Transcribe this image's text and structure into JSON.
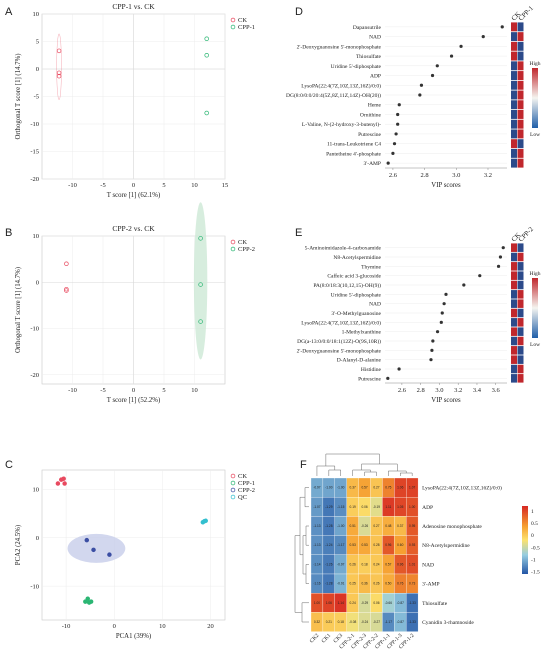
{
  "panel_labels": {
    "A": "A",
    "B": "B",
    "C": "C",
    "D": "D",
    "E": "E",
    "F": "F"
  },
  "chart_data": [
    {
      "id": "A",
      "type": "scatter",
      "title": "CPP-1 vs. CK",
      "xlabel": "T score [1] (62.1%)",
      "ylabel": "Orthogonal T score [1] (14.7%)",
      "xlim": [
        -15,
        15
      ],
      "ylim": [
        -20,
        10
      ],
      "xticks": [
        -10,
        -5,
        0,
        5,
        10,
        15
      ],
      "yticks": [
        -20,
        -15,
        -10,
        -5,
        0,
        5,
        10
      ],
      "legend_position": "right",
      "series": [
        {
          "name": "CK",
          "color": "#e8495f",
          "points": [
            [
              -12.2,
              3.3
            ],
            [
              -12.2,
              -0.7
            ],
            [
              -12.2,
              -1.3
            ]
          ]
        },
        {
          "name": "CPP-1",
          "color": "#2bb673",
          "points": [
            [
              12.0,
              5.5
            ],
            [
              12.0,
              2.5
            ],
            [
              12.0,
              -8.0
            ]
          ]
        }
      ],
      "ellipse": {
        "series": "CK",
        "cx": -12.2,
        "cy": 0.4,
        "rx": 0.4,
        "ry": 6
      }
    },
    {
      "id": "B",
      "type": "scatter",
      "title": "CPP-2 vs. CK",
      "xlabel": "T score [1] (52.2%)",
      "ylabel": "Orthogonal T score [1] (14.7%)",
      "xlim": [
        -15,
        15
      ],
      "ylim": [
        -22,
        10
      ],
      "xticks": [
        -10,
        -5,
        0,
        5,
        10
      ],
      "yticks": [
        -20,
        -10,
        0,
        10
      ],
      "legend_position": "right",
      "series": [
        {
          "name": "CK",
          "color": "#e8495f",
          "points": [
            [
              -11,
              4.0
            ],
            [
              -11,
              -1.5
            ],
            [
              -11,
              -1.8
            ]
          ]
        },
        {
          "name": "CPP-2",
          "color": "#2bb673",
          "points": [
            [
              11,
              9.5
            ],
            [
              11,
              -0.5
            ],
            [
              11,
              -8.5
            ]
          ]
        }
      ],
      "ellipse": {
        "series": "CPP-2",
        "cx": 11,
        "cy": 0.3,
        "rx": 1.1,
        "ry": 17,
        "fill": "#cde9d6"
      }
    },
    {
      "id": "C",
      "type": "scatter",
      "xlabel": "PCA1 (39%)",
      "ylabel": "PCA2 (24.5%)",
      "xlim": [
        -15,
        23
      ],
      "ylim": [
        -17,
        14
      ],
      "xticks": [
        -10,
        0,
        10,
        20
      ],
      "yticks": [
        -10,
        0,
        10
      ],
      "legend_position": "top-right",
      "series": [
        {
          "name": "CK",
          "color": "#e8495f",
          "points": [
            [
              -11,
              12
            ],
            [
              -10.3,
              11.2
            ],
            [
              -11.7,
              11.2
            ],
            [
              -10.5,
              12.2
            ]
          ]
        },
        {
          "name": "CPP-1",
          "color": "#2bb673",
          "points": [
            [
              -5.5,
              -12.6
            ],
            [
              -4.8,
              -13.2
            ],
            [
              -6.0,
              -13.2
            ],
            [
              -5.2,
              -13.4
            ]
          ]
        },
        {
          "name": "CPP-2",
          "color": "#3b4ea3",
          "points": [
            [
              -5.7,
              -0.5
            ],
            [
              -4.3,
              -2.5
            ],
            [
              -1.0,
              -3.5
            ]
          ]
        },
        {
          "name": "QC",
          "color": "#33bfcf",
          "points": [
            [
              18.4,
              3.2
            ],
            [
              18.7,
              3.4
            ],
            [
              19.0,
              3.5
            ]
          ]
        }
      ],
      "ellipse": {
        "series": "CPP-2",
        "cx": -3.7,
        "cy": -2.2,
        "rx": 6,
        "ry": 3,
        "fill": "#c7cdea"
      }
    },
    {
      "id": "D",
      "type": "dot",
      "xlabel": "VIP scores",
      "xlim": [
        2.55,
        3.32
      ],
      "xticks": [
        2.6,
        2.8,
        3.0,
        3.2
      ],
      "legend_labels": [
        "High",
        "Low"
      ],
      "column_labels": [
        "CK",
        "CPP-1"
      ],
      "items": [
        {
          "name": "Dapansutrile",
          "vip": 3.29,
          "ck": "#c0272d",
          "cpp": "#2c4a8a"
        },
        {
          "name": "NAD",
          "vip": 3.17,
          "ck": "#2c4a8a",
          "cpp": "#c0272d"
        },
        {
          "name": "2'-Deoxyguanosine 5'-monophosphate",
          "vip": 3.03,
          "ck": "#c0272d",
          "cpp": "#2c4a8a"
        },
        {
          "name": "Thiosulfate",
          "vip": 2.97,
          "ck": "#c0272d",
          "cpp": "#2c4a8a"
        },
        {
          "name": "Uridine 5'-diphosphate",
          "vip": 2.88,
          "ck": "#2c4a8a",
          "cpp": "#c0272d"
        },
        {
          "name": "ADP",
          "vip": 2.85,
          "ck": "#2c4a8a",
          "cpp": "#c0272d"
        },
        {
          "name": "LysoPA(22:4(7Z,10Z,13Z,16Z)/0:0)",
          "vip": 2.78,
          "ck": "#2c4a8a",
          "cpp": "#c0272d"
        },
        {
          "name": "DG(8:0/0:0/20:4(5Z,8Z,11Z,14Z)-OH(20))",
          "vip": 2.77,
          "ck": "#2c4a8a",
          "cpp": "#c0272d"
        },
        {
          "name": "Heme",
          "vip": 2.64,
          "ck": "#2c4a8a",
          "cpp": "#c0272d"
        },
        {
          "name": "Ornithine",
          "vip": 2.63,
          "ck": "#2c4a8a",
          "cpp": "#c0272d"
        },
        {
          "name": "L-Valine, N-(2-hydroxy-3-butenyl)-",
          "vip": 2.63,
          "ck": "#2c4a8a",
          "cpp": "#c0272d"
        },
        {
          "name": "Putrescine",
          "vip": 2.62,
          "ck": "#2c4a8a",
          "cpp": "#c0272d"
        },
        {
          "name": "11-trans-Leukotriene C4",
          "vip": 2.61,
          "ck": "#c0272d",
          "cpp": "#2c4a8a"
        },
        {
          "name": "Pantetheine 4'-phosphate",
          "vip": 2.6,
          "ck": "#2c4a8a",
          "cpp": "#c0272d"
        },
        {
          "name": "3'-AMP",
          "vip": 2.57,
          "ck": "#2c4a8a",
          "cpp": "#c0272d"
        }
      ]
    },
    {
      "id": "E",
      "type": "dot",
      "xlabel": "VIP scores",
      "xlim": [
        2.42,
        3.72
      ],
      "xticks": [
        2.6,
        2.8,
        3.0,
        3.2,
        3.4,
        3.6
      ],
      "legend_labels": [
        "High",
        "Low"
      ],
      "column_labels": [
        "CK",
        "CPP-2"
      ],
      "items": [
        {
          "name": "5-Aminoimidazole-4-carboxamide",
          "vip": 3.68,
          "ck": "#c0272d",
          "cpp": "#2c4a8a"
        },
        {
          "name": "N8-Acetylspermidine",
          "vip": 3.65,
          "ck": "#2c4a8a",
          "cpp": "#c0272d"
        },
        {
          "name": "Thymine",
          "vip": 3.63,
          "ck": "#c0272d",
          "cpp": "#2c4a8a"
        },
        {
          "name": "Caffeic acid 3-glucoside",
          "vip": 3.43,
          "ck": "#c0272d",
          "cpp": "#2c4a8a"
        },
        {
          "name": "PA(8:0/18:3(10,12,15)-OH(9))",
          "vip": 3.26,
          "ck": "#c0272d",
          "cpp": "#2c4a8a"
        },
        {
          "name": "Uridine 5'-diphosphate",
          "vip": 3.07,
          "ck": "#2c4a8a",
          "cpp": "#c0272d"
        },
        {
          "name": "NAD",
          "vip": 3.05,
          "ck": "#2c4a8a",
          "cpp": "#c0272d"
        },
        {
          "name": "3'-O-Methylguanosine",
          "vip": 3.03,
          "ck": "#c0272d",
          "cpp": "#2c4a8a"
        },
        {
          "name": "LysoPA(22:4(7Z,10Z,13Z,16Z)/0:0)",
          "vip": 3.02,
          "ck": "#2c4a8a",
          "cpp": "#c0272d"
        },
        {
          "name": "1-Methylxanthine",
          "vip": 2.98,
          "ck": "#c0272d",
          "cpp": "#2c4a8a"
        },
        {
          "name": "DG(a-13:0/0:0/18:1(12Z)-O(9S,10R))",
          "vip": 2.93,
          "ck": "#2c4a8a",
          "cpp": "#c0272d"
        },
        {
          "name": "2'-Deoxyguanosine 5'-monophosphate",
          "vip": 2.92,
          "ck": "#c0272d",
          "cpp": "#2c4a8a"
        },
        {
          "name": "D-Alanyl-D-alanine",
          "vip": 2.91,
          "ck": "#c0272d",
          "cpp": "#2c4a8a"
        },
        {
          "name": "Histidine",
          "vip": 2.57,
          "ck": "#2c4a8a",
          "cpp": "#c0272d"
        },
        {
          "name": "Putrescine",
          "vip": 2.45,
          "ck": "#2c4a8a",
          "cpp": "#c0272d"
        }
      ]
    },
    {
      "id": "F",
      "type": "heatmap",
      "columns": [
        "CK2",
        "CK1",
        "CK3",
        "CPP-2-1",
        "CPP-2-3",
        "CPP-2-2",
        "CPP-1-1",
        "CPP-1-3",
        "CPP-1-2"
      ],
      "rows": [
        "LysoPA(22:4(7Z,10Z,13Z,16Z)/0:0)",
        "ADP",
        "Adenosine monophosphate",
        "N8-Acetylspermidine",
        "NAD",
        "3'-AMP",
        "Thiosulfate",
        "Cyanidin 3-rhamnoside"
      ],
      "colorbar_ticks": [
        1,
        0.5,
        0,
        -0.5,
        -1,
        -1.5
      ],
      "values": [
        [
          -0.97,
          -1.0,
          -1.0,
          0.37,
          0.57,
          0.27,
          0.75,
          1.06,
          1.07
        ],
        [
          -1.07,
          -1.29,
          -1.15,
          0.19,
          0.06,
          -0.19,
          1.11,
          1.05,
          1.0
        ],
        [
          -1.13,
          -1.28,
          -1.0,
          0.51,
          -0.26,
          0.27,
          0.48,
          0.37,
          0.95
        ],
        [
          -1.13,
          -1.24,
          -1.17,
          0.53,
          0.53,
          0.28,
          0.96,
          0.6,
          0.93
        ],
        [
          -1.14,
          -1.26,
          -0.97,
          0.26,
          0.18,
          0.24,
          0.57,
          0.96,
          1.01
        ],
        [
          -1.16,
          -1.28,
          -0.91,
          0.25,
          0.36,
          0.26,
          0.5,
          0.76,
          0.73
        ],
        [
          1.0,
          1.06,
          1.14,
          0.24,
          -0.29,
          0.06,
          -0.66,
          -0.87,
          -1.33
        ],
        [
          0.32,
          0.21,
          0.18,
          -0.08,
          -0.24,
          -0.27,
          -1.17,
          -0.87,
          -1.33
        ]
      ]
    }
  ]
}
